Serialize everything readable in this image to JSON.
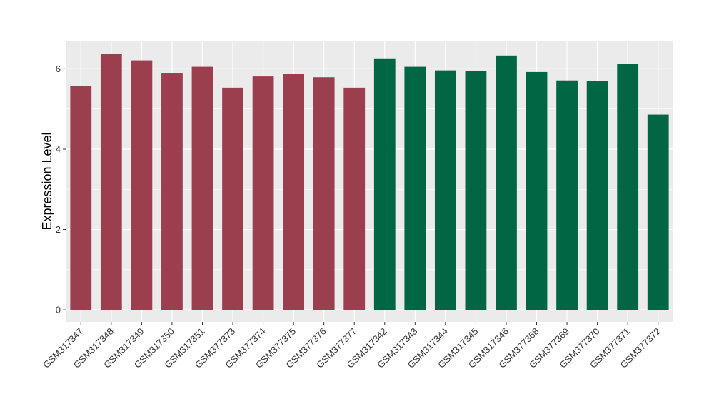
{
  "chart_data": {
    "type": "bar",
    "title": "",
    "xlabel": "",
    "ylabel": "Expression Level",
    "ylim": [
      -0.3,
      6.7
    ],
    "yticks": [
      0,
      2,
      4,
      6
    ],
    "grid": true,
    "colors": {
      "group1": "#9b3f4f",
      "group2": "#006644",
      "panel": "#ebebeb",
      "gridline": "#ffffff"
    },
    "categories": [
      "GSM317347",
      "GSM317348",
      "GSM317349",
      "GSM317350",
      "GSM317351",
      "GSM377373",
      "GSM377374",
      "GSM377375",
      "GSM377376",
      "GSM377377",
      "GSM317342",
      "GSM317343",
      "GSM317344",
      "GSM317345",
      "GSM317346",
      "GSM377368",
      "GSM377369",
      "GSM377370",
      "GSM377371",
      "GSM377372"
    ],
    "values": [
      5.58,
      6.38,
      6.21,
      5.9,
      6.05,
      5.53,
      5.81,
      5.88,
      5.79,
      5.53,
      6.26,
      6.05,
      5.96,
      5.94,
      6.33,
      5.92,
      5.71,
      5.69,
      6.12,
      4.86
    ],
    "groups": [
      1,
      1,
      1,
      1,
      1,
      1,
      1,
      1,
      1,
      1,
      2,
      2,
      2,
      2,
      2,
      2,
      2,
      2,
      2,
      2
    ]
  }
}
